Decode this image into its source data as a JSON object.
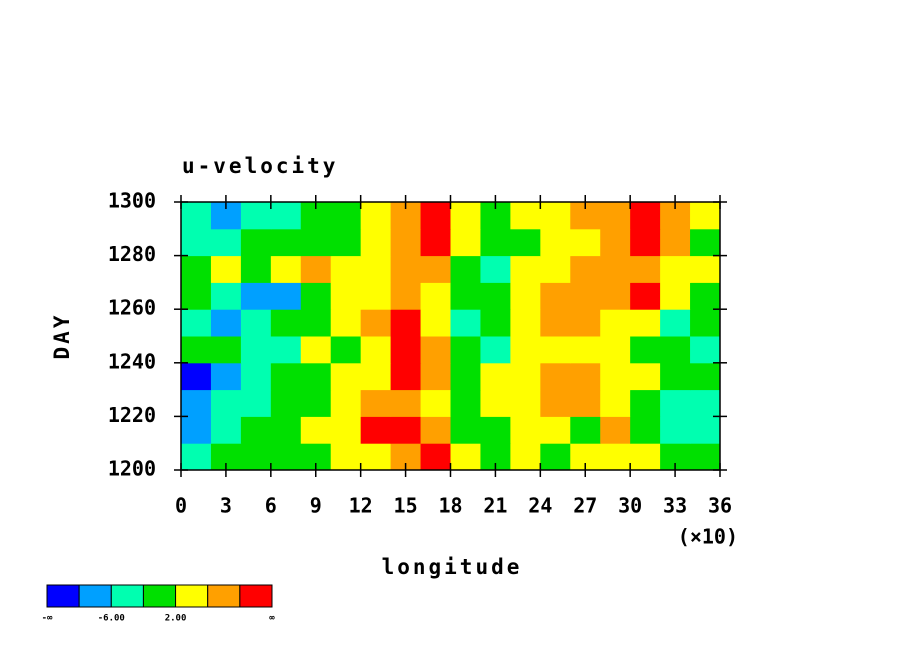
{
  "chart_data": {
    "type": "heatmap",
    "title": "u-velocity",
    "x_label": "longitude",
    "y_label": "DAY",
    "x_multiplier": "(×10)",
    "xlim": [
      0,
      36
    ],
    "xticks": [
      0,
      3,
      6,
      9,
      12,
      15,
      18,
      21,
      24,
      27,
      30,
      33,
      36
    ],
    "ylim": [
      1200,
      1300
    ],
    "yticks": [
      1200,
      1220,
      1240,
      1260,
      1280,
      1300
    ],
    "z": [
      [
        -3,
        -1,
        0,
        1,
        -2,
        2,
        4,
        8,
        11,
        3,
        -1,
        2,
        1,
        4,
        3,
        5,
        0,
        -2
      ],
      [
        -7,
        -4,
        -2,
        0,
        2,
        5,
        11,
        12,
        8,
        1,
        0,
        3,
        4,
        1,
        6,
        -2,
        -4,
        -5
      ],
      [
        -9,
        -6,
        -3,
        -1,
        -2,
        3,
        6,
        9,
        4,
        0,
        2,
        5,
        7,
        9,
        4,
        0,
        -3,
        -4
      ],
      [
        -11,
        -8,
        -4,
        -2,
        0,
        4,
        5,
        10,
        6,
        -1,
        3,
        4,
        6,
        8,
        3,
        2,
        -1,
        0
      ],
      [
        -2,
        1,
        -3,
        -5,
        2,
        1,
        3,
        11,
        7,
        -2,
        -4,
        2,
        4,
        3,
        5,
        1,
        -2,
        -3
      ],
      [
        -6,
        -10,
        -4,
        -1,
        -2,
        3,
        6,
        12,
        5,
        -3,
        -1,
        4,
        8,
        7,
        5,
        2,
        -3,
        -1
      ],
      [
        1,
        -3,
        -7,
        -8,
        0,
        2,
        4,
        7,
        3,
        -2,
        1,
        5,
        9,
        6,
        8,
        10,
        4,
        -1
      ],
      [
        -1,
        2,
        1,
        4,
        7,
        3,
        5,
        8,
        6,
        -1,
        -3,
        2,
        3,
        6,
        7,
        9,
        5,
        2
      ],
      [
        -3,
        -5,
        0,
        -2,
        1,
        0,
        4,
        9,
        11,
        2,
        -2,
        -1,
        3,
        5,
        8,
        10,
        6,
        0
      ],
      [
        -4,
        -9,
        -6,
        -3,
        -1,
        1,
        3,
        6,
        10,
        4,
        -1,
        2,
        4,
        7,
        9,
        11,
        8,
        3
      ]
    ],
    "colorbar": {
      "colors": [
        "#0000ff",
        "#00a0ff",
        "#00ffb0",
        "#00e000",
        "#ffff00",
        "#ffa000",
        "#ff0000"
      ],
      "levels": [
        -10,
        -6,
        -2,
        2,
        6,
        10
      ],
      "labels": [
        {
          "label": "-∞",
          "end": "start"
        },
        {
          "value": -6,
          "label": "-6.00"
        },
        {
          "value": 2,
          "label": "2.00"
        },
        {
          "label": "∞",
          "end": "end"
        }
      ]
    }
  }
}
